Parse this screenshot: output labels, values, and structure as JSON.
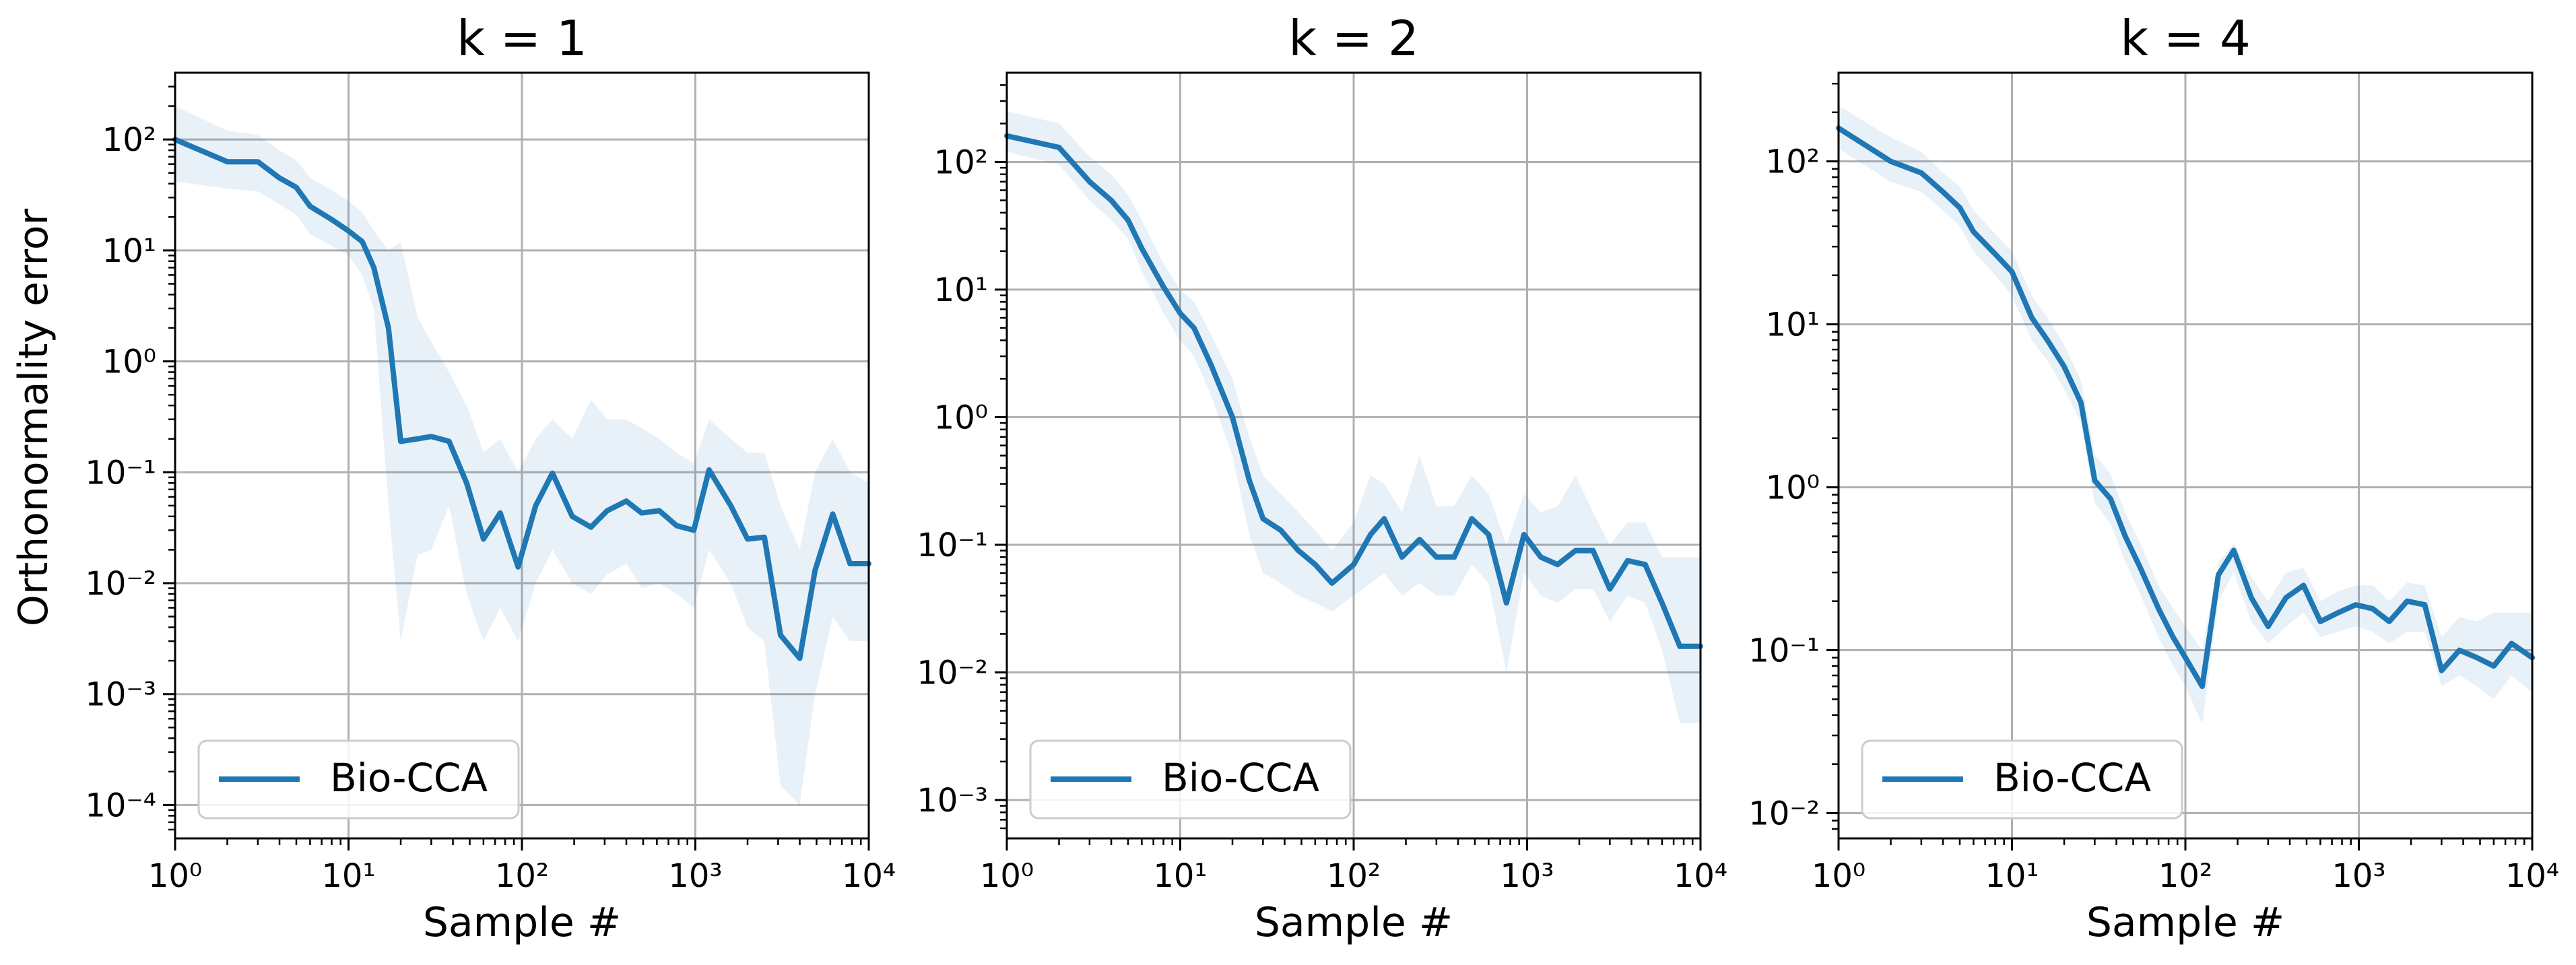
{
  "ylabel": "Orthonormality error",
  "chart_data": [
    {
      "type": "line",
      "title": "k = 1",
      "xlabel": "Sample #",
      "xscale": "log",
      "yscale": "log",
      "xlim": [
        1,
        10000
      ],
      "ylim": [
        5e-05,
        400
      ],
      "xticks": [
        1,
        10,
        100,
        1000,
        10000
      ],
      "yticks": [
        0.0001,
        0.001,
        0.01,
        0.1,
        1,
        10,
        100
      ],
      "grid": true,
      "legend": "lower-left",
      "series": [
        {
          "name": "Bio-CCA",
          "color": "#1f77b4",
          "x": [
            1,
            2,
            3,
            4,
            5,
            6,
            8,
            10,
            12,
            14,
            17,
            20,
            25,
            30,
            38,
            48,
            60,
            75,
            95,
            120,
            150,
            195,
            250,
            310,
            400,
            490,
            620,
            780,
            980,
            1200,
            1600,
            2000,
            2500,
            3100,
            4000,
            4900,
            6200,
            7800,
            10000
          ],
          "y": [
            100,
            63,
            63,
            45,
            37,
            25,
            19,
            15,
            12,
            7,
            2,
            0.19,
            0.2,
            0.21,
            0.19,
            0.08,
            0.025,
            0.043,
            0.014,
            0.05,
            0.098,
            0.04,
            0.032,
            0.045,
            0.055,
            0.043,
            0.045,
            0.033,
            0.03,
            0.105,
            0.05,
            0.025,
            0.026,
            0.0034,
            0.0021,
            0.013,
            0.042,
            0.015,
            0.015
          ],
          "lower": [
            42,
            36,
            34,
            26,
            21,
            14,
            11,
            9,
            6,
            3,
            0.05,
            0.003,
            0.018,
            0.02,
            0.05,
            0.008,
            0.003,
            0.006,
            0.003,
            0.01,
            0.02,
            0.01,
            0.008,
            0.012,
            0.015,
            0.009,
            0.01,
            0.008,
            0.006,
            0.02,
            0.01,
            0.004,
            0.003,
            0.00015,
            0.0001,
            0.001,
            0.005,
            0.003,
            0.003
          ],
          "upper": [
            200,
            120,
            110,
            80,
            65,
            45,
            35,
            28,
            22,
            15,
            10,
            12,
            2.5,
            1.5,
            0.8,
            0.4,
            0.15,
            0.2,
            0.1,
            0.2,
            0.3,
            0.2,
            0.45,
            0.3,
            0.3,
            0.25,
            0.2,
            0.15,
            0.12,
            0.3,
            0.2,
            0.15,
            0.15,
            0.05,
            0.02,
            0.1,
            0.2,
            0.1,
            0.08
          ]
        }
      ]
    },
    {
      "type": "line",
      "title": "k = 2",
      "xlabel": "Sample #",
      "xscale": "log",
      "yscale": "log",
      "xlim": [
        1,
        10000
      ],
      "ylim": [
        0.0005,
        500
      ],
      "xticks": [
        1,
        10,
        100,
        1000,
        10000
      ],
      "yticks": [
        0.001,
        0.01,
        0.1,
        1,
        10,
        100
      ],
      "grid": true,
      "legend": "lower-left",
      "series": [
        {
          "name": "Bio-CCA",
          "color": "#1f77b4",
          "x": [
            1,
            2,
            3,
            4,
            5,
            6,
            8,
            10,
            12,
            15,
            20,
            25,
            30,
            38,
            48,
            60,
            75,
            100,
            125,
            150,
            190,
            240,
            300,
            380,
            480,
            600,
            760,
            960,
            1200,
            1500,
            1900,
            2400,
            3000,
            3800,
            4800,
            6000,
            7600,
            10000
          ],
          "y": [
            160,
            130,
            70,
            50,
            35,
            21,
            10.5,
            6.5,
            5,
            2.6,
            1.0,
            0.32,
            0.16,
            0.13,
            0.09,
            0.07,
            0.05,
            0.07,
            0.12,
            0.16,
            0.08,
            0.11,
            0.08,
            0.08,
            0.16,
            0.12,
            0.035,
            0.12,
            0.08,
            0.07,
            0.09,
            0.09,
            0.045,
            0.075,
            0.07,
            0.035,
            0.016,
            0.016
          ],
          "lower": [
            120,
            95,
            50,
            35,
            25,
            14,
            6.5,
            4,
            3,
            1.5,
            0.5,
            0.12,
            0.06,
            0.05,
            0.04,
            0.035,
            0.03,
            0.04,
            0.05,
            0.06,
            0.04,
            0.05,
            0.04,
            0.04,
            0.07,
            0.05,
            0.01,
            0.06,
            0.04,
            0.035,
            0.045,
            0.045,
            0.025,
            0.04,
            0.035,
            0.015,
            0.004,
            0.004
          ],
          "upper": [
            250,
            200,
            110,
            80,
            55,
            35,
            16,
            10,
            8,
            4.5,
            2,
            0.7,
            0.35,
            0.25,
            0.18,
            0.13,
            0.09,
            0.15,
            0.35,
            0.3,
            0.18,
            0.5,
            0.2,
            0.2,
            0.35,
            0.25,
            0.1,
            0.25,
            0.18,
            0.2,
            0.35,
            0.18,
            0.1,
            0.15,
            0.15,
            0.08,
            0.08,
            0.08
          ]
        }
      ]
    },
    {
      "type": "line",
      "title": "k = 4",
      "xlabel": "Sample #",
      "xscale": "log",
      "yscale": "log",
      "xlim": [
        1,
        10000
      ],
      "ylim": [
        0.007,
        350
      ],
      "xticks": [
        1,
        10,
        100,
        1000,
        10000
      ],
      "yticks": [
        0.01,
        0.1,
        1,
        10,
        100
      ],
      "grid": true,
      "legend": "lower-left",
      "series": [
        {
          "name": "Bio-CCA",
          "color": "#1f77b4",
          "x": [
            1,
            2,
            3,
            4,
            5,
            6,
            8,
            10,
            13,
            16,
            20,
            25,
            30,
            37,
            45,
            55,
            70,
            85,
            100,
            125,
            155,
            190,
            240,
            300,
            380,
            480,
            600,
            760,
            960,
            1200,
            1500,
            1900,
            2400,
            3000,
            3800,
            4800,
            6000,
            7600,
            10000
          ],
          "y": [
            160,
            100,
            85,
            65,
            52,
            37,
            27,
            21,
            11,
            8,
            5.5,
            3.3,
            1.1,
            0.85,
            0.5,
            0.32,
            0.18,
            0.12,
            0.09,
            0.06,
            0.29,
            0.41,
            0.21,
            0.14,
            0.21,
            0.25,
            0.15,
            0.17,
            0.19,
            0.18,
            0.15,
            0.2,
            0.19,
            0.075,
            0.1,
            0.09,
            0.08,
            0.11,
            0.09
          ],
          "lower": [
            120,
            75,
            65,
            50,
            40,
            28,
            20,
            15,
            8,
            6,
            4,
            2.5,
            0.8,
            0.6,
            0.35,
            0.22,
            0.12,
            0.08,
            0.06,
            0.035,
            0.2,
            0.3,
            0.15,
            0.11,
            0.14,
            0.17,
            0.12,
            0.13,
            0.14,
            0.13,
            0.11,
            0.13,
            0.13,
            0.06,
            0.07,
            0.06,
            0.05,
            0.07,
            0.055
          ],
          "upper": [
            220,
            140,
            115,
            85,
            70,
            50,
            36,
            28,
            15,
            11,
            7.5,
            4.5,
            1.6,
            1.2,
            0.7,
            0.45,
            0.25,
            0.18,
            0.14,
            0.1,
            0.35,
            0.45,
            0.28,
            0.2,
            0.3,
            0.32,
            0.2,
            0.23,
            0.25,
            0.25,
            0.2,
            0.26,
            0.25,
            0.12,
            0.16,
            0.15,
            0.17,
            0.17,
            0.17
          ]
        }
      ]
    }
  ]
}
